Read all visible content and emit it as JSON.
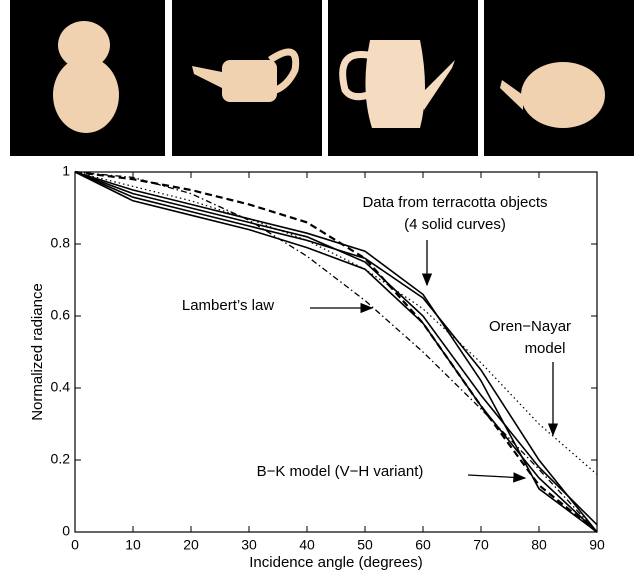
{
  "chart_data": {
    "type": "line",
    "x_label": "Incidence angle (degrees)",
    "y_label": "Normalized radiance",
    "x": [
      0,
      10,
      20,
      30,
      40,
      50,
      60,
      70,
      80,
      90
    ],
    "xlim": [
      0,
      90
    ],
    "ylim": [
      0,
      1
    ],
    "xticks": [
      0,
      10,
      20,
      30,
      40,
      50,
      60,
      70,
      80,
      90
    ],
    "yticks": [
      0,
      0.2,
      0.4,
      0.6,
      0.8,
      1
    ],
    "series": [
      {
        "color": "#000000",
        "dash": "solid",
        "values": [
          1,
          0.93,
          0.89,
          0.85,
          0.81,
          0.76,
          0.65,
          0.45,
          0.2,
          0
        ]
      },
      {
        "color": "#000000",
        "dash": "solid",
        "values": [
          1,
          0.95,
          0.91,
          0.87,
          0.83,
          0.78,
          0.66,
          0.42,
          0.12,
          0
        ]
      },
      {
        "color": "#000000",
        "dash": "solid",
        "values": [
          1,
          0.94,
          0.9,
          0.86,
          0.82,
          0.75,
          0.6,
          0.38,
          0.18,
          0.02
        ]
      },
      {
        "color": "#000000",
        "dash": "solid",
        "values": [
          1,
          0.92,
          0.88,
          0.84,
          0.79,
          0.73,
          0.58,
          0.35,
          0.15,
          0
        ]
      },
      {
        "color": "#000000",
        "dash": "dashdot",
        "values": [
          1,
          0.985,
          0.94,
          0.866,
          0.766,
          0.643,
          0.5,
          0.342,
          0.174,
          0
        ]
      },
      {
        "color": "#000000",
        "dash": "dotted",
        "values": [
          1,
          0.96,
          0.92,
          0.87,
          0.81,
          0.73,
          0.62,
          0.47,
          0.3,
          0.16
        ]
      },
      {
        "color": "#000000",
        "dash": "dashed",
        "values": [
          1,
          0.98,
          0.95,
          0.91,
          0.86,
          0.76,
          0.58,
          0.35,
          0.13,
          0
        ]
      }
    ],
    "annotations": [
      {
        "lines": [
          "Data from terracotta objects",
          "(4 solid curves)"
        ]
      },
      {
        "lines": [
          "Lambert’s law"
        ]
      },
      {
        "lines": [
          "Oren−Nayar",
          "model"
        ]
      },
      {
        "lines": [
          "B−K model (V−H variant)"
        ]
      }
    ]
  }
}
